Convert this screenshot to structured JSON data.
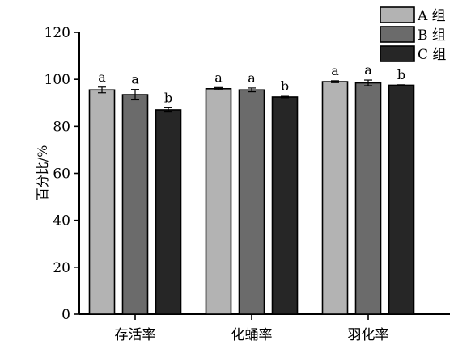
{
  "chart_data": {
    "type": "bar",
    "ylabel": "百分比/%",
    "ylim": [
      0,
      120
    ],
    "yticks": [
      0,
      20,
      40,
      60,
      80,
      100,
      120
    ],
    "categories": [
      "存活率",
      "化蛹率",
      "羽化率"
    ],
    "legend_position": "top-right",
    "series": [
      {
        "name": "A 组",
        "color": "#b3b3b3",
        "values": [
          95.5,
          96,
          99
        ],
        "errors": [
          1.2,
          0.5,
          0.4
        ],
        "labels": [
          "a",
          "a",
          "a"
        ]
      },
      {
        "name": "B 组",
        "color": "#6b6b6b",
        "values": [
          93.5,
          95.5,
          98.5
        ],
        "errors": [
          2.2,
          0.8,
          1.2
        ],
        "labels": [
          "a",
          "a",
          "a"
        ]
      },
      {
        "name": "C 组",
        "color": "#262626",
        "values": [
          87,
          92.5,
          97.5
        ],
        "errors": [
          0.9,
          0.3,
          0.2
        ],
        "labels": [
          "b",
          "b",
          "b"
        ]
      }
    ]
  }
}
